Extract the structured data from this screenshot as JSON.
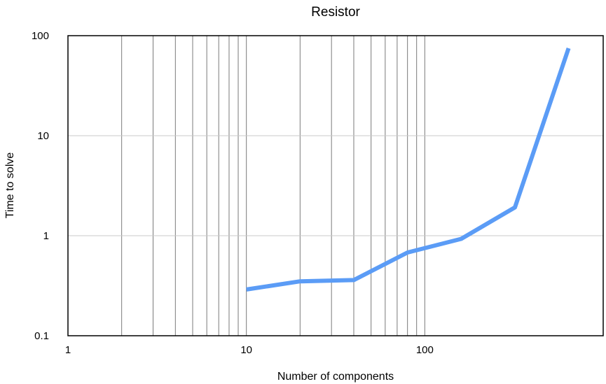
{
  "chart_data": {
    "type": "line",
    "title": "Resistor",
    "xlabel": "Number of components",
    "ylabel": "Time to solve",
    "xscale": "log",
    "yscale": "log",
    "xlim": [
      1,
      1000
    ],
    "ylim": [
      0.1,
      100
    ],
    "x_ticks": [
      1,
      10,
      100
    ],
    "x_tick_labels": [
      "1",
      "10",
      "100"
    ],
    "y_ticks": [
      0.1,
      1,
      10,
      100
    ],
    "y_tick_labels": [
      "0.1",
      "1",
      "10",
      "100"
    ],
    "grid": "vertical minor and major lines; horizontal major lines",
    "series": [
      {
        "color": "#5b9cf6",
        "x": [
          10,
          20,
          40,
          80,
          160,
          320,
          640
        ],
        "y": [
          0.29,
          0.35,
          0.36,
          0.68,
          0.93,
          1.92,
          75
        ]
      }
    ]
  }
}
